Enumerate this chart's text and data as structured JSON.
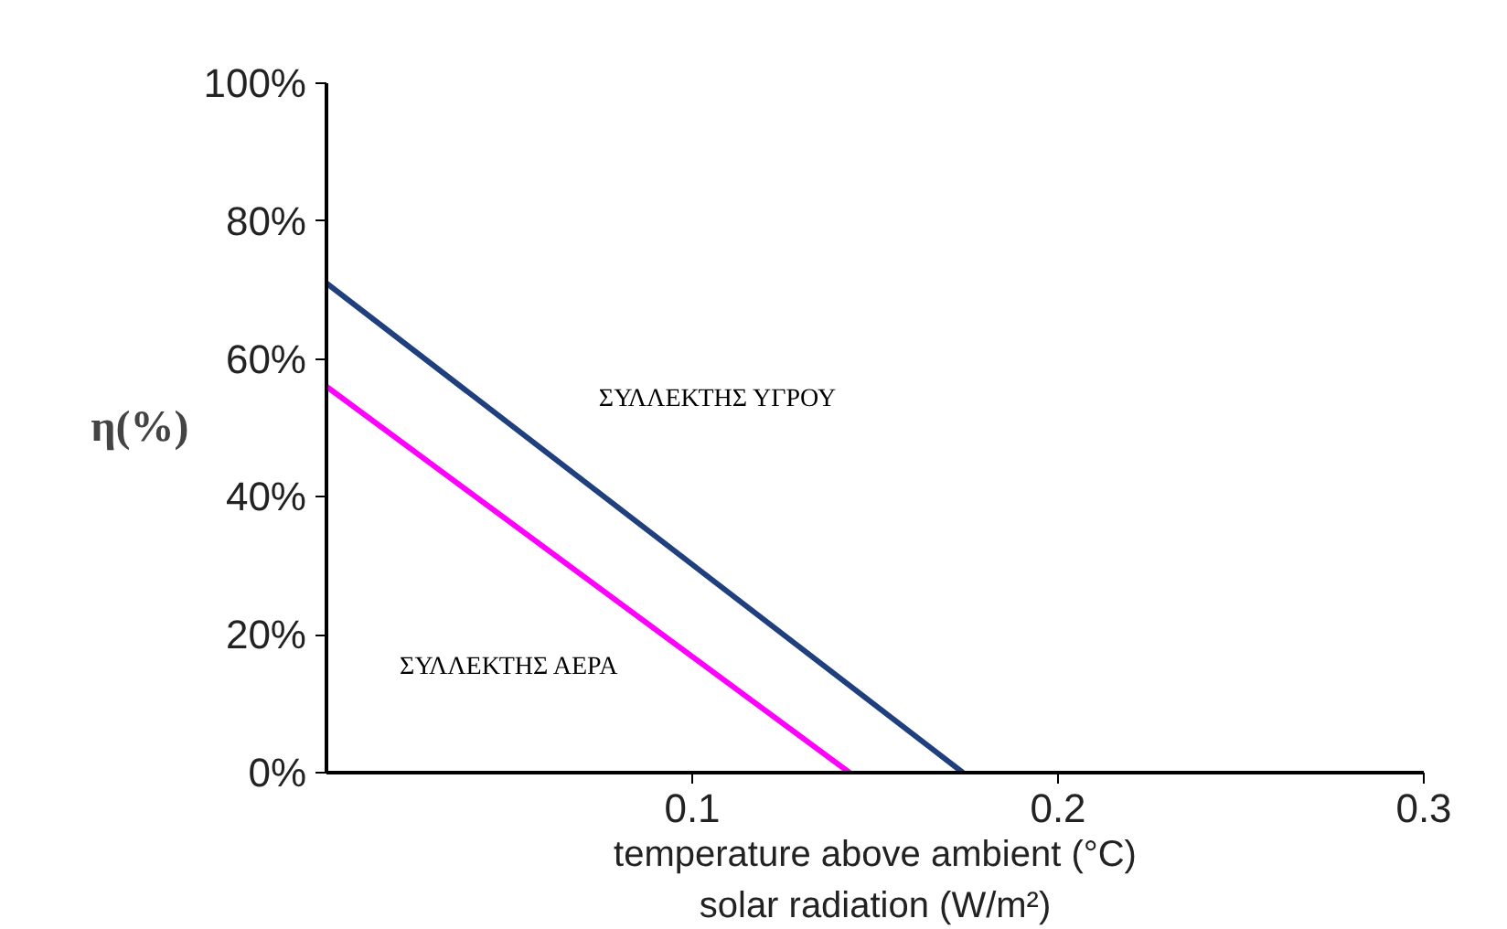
{
  "chart_data": {
    "type": "line",
    "xlabel": "temperature above ambient (°C)\nsolar radiation (W/m²)",
    "ylabel": "η(%)",
    "xlim": [
      0,
      0.3
    ],
    "ylim": [
      0,
      100
    ],
    "xticks": [
      0.1,
      0.2,
      0.3
    ],
    "yticks": [
      {
        "value": 0,
        "label": "0%"
      },
      {
        "value": 20,
        "label": "20%"
      },
      {
        "value": 40,
        "label": "40%"
      },
      {
        "value": 60,
        "label": "60%"
      },
      {
        "value": 80,
        "label": "80%"
      },
      {
        "value": 100,
        "label": "100%"
      }
    ],
    "grid": false,
    "marker": "none",
    "line_style": "solid",
    "series": [
      {
        "name": "ΣΥΛΛΕΚΤΗΣ ΥΓΡΟΥ",
        "color": "#1f3f7f",
        "x": [
          0,
          0.174
        ],
        "values": [
          71,
          0
        ]
      },
      {
        "name": "ΣΥΛΛΕΚΤΗΣ ΑΕΡΑ",
        "color": "#ff00ff",
        "x": [
          0,
          0.143
        ],
        "values": [
          56,
          0
        ]
      }
    ]
  }
}
